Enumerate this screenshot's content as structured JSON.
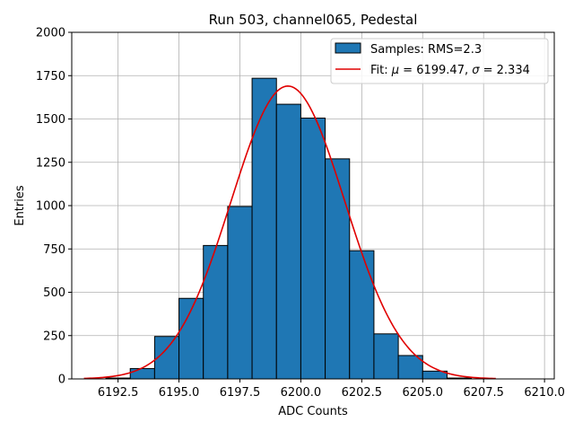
{
  "chart_data": {
    "type": "bar",
    "title": "Run 503, channel065, Pedestal",
    "xlabel": "ADC Counts",
    "ylabel": "Entries",
    "xlim": [
      6190.6,
      6210.4
    ],
    "ylim": [
      0,
      2000
    ],
    "grid": true,
    "legend_position": "top-right",
    "xticks": [
      6192.5,
      6195.0,
      6197.5,
      6200.0,
      6202.5,
      6205.0,
      6207.5,
      6210.0
    ],
    "xtick_labels": [
      "6192.5",
      "6195.0",
      "6197.5",
      "6200.0",
      "6202.5",
      "6205.0",
      "6207.5",
      "6210.0"
    ],
    "yticks": [
      0,
      250,
      500,
      750,
      1000,
      1250,
      1500,
      1750,
      2000
    ],
    "ytick_labels": [
      "0",
      "250",
      "500",
      "750",
      "1000",
      "1250",
      "1500",
      "1750",
      "2000"
    ],
    "bins": [
      {
        "x0": 6192,
        "x1": 6193,
        "value": 5
      },
      {
        "x0": 6193,
        "x1": 6194,
        "value": 60
      },
      {
        "x0": 6194,
        "x1": 6195,
        "value": 245
      },
      {
        "x0": 6195,
        "x1": 6196,
        "value": 465
      },
      {
        "x0": 6196,
        "x1": 6197,
        "value": 770
      },
      {
        "x0": 6197,
        "x1": 6198,
        "value": 995
      },
      {
        "x0": 6198,
        "x1": 6199,
        "value": 1735
      },
      {
        "x0": 6199,
        "x1": 6200,
        "value": 1585
      },
      {
        "x0": 6200,
        "x1": 6201,
        "value": 1505
      },
      {
        "x0": 6201,
        "x1": 6202,
        "value": 1270
      },
      {
        "x0": 6202,
        "x1": 6203,
        "value": 740
      },
      {
        "x0": 6203,
        "x1": 6204,
        "value": 260
      },
      {
        "x0": 6204,
        "x1": 6205,
        "value": 135
      },
      {
        "x0": 6205,
        "x1": 6206,
        "value": 45
      },
      {
        "x0": 6206,
        "x1": 6207,
        "value": 5
      }
    ],
    "fit": {
      "type": "gaussian",
      "mu": 6199.47,
      "sigma": 2.334,
      "amplitude": 1690,
      "xrange": [
        6191.1,
        6208.0
      ]
    },
    "series": [
      {
        "name": "Samples: RMS=2.3",
        "kind": "histogram",
        "color": "#1f77b4",
        "edge_color": "#000000"
      },
      {
        "name_prefix": "Fit: ",
        "mu_symbol": "μ",
        "mu_text": " = 6199.47, ",
        "sigma_symbol": "σ",
        "sigma_text": " = 2.334",
        "kind": "line",
        "color": "#e00000"
      }
    ]
  }
}
